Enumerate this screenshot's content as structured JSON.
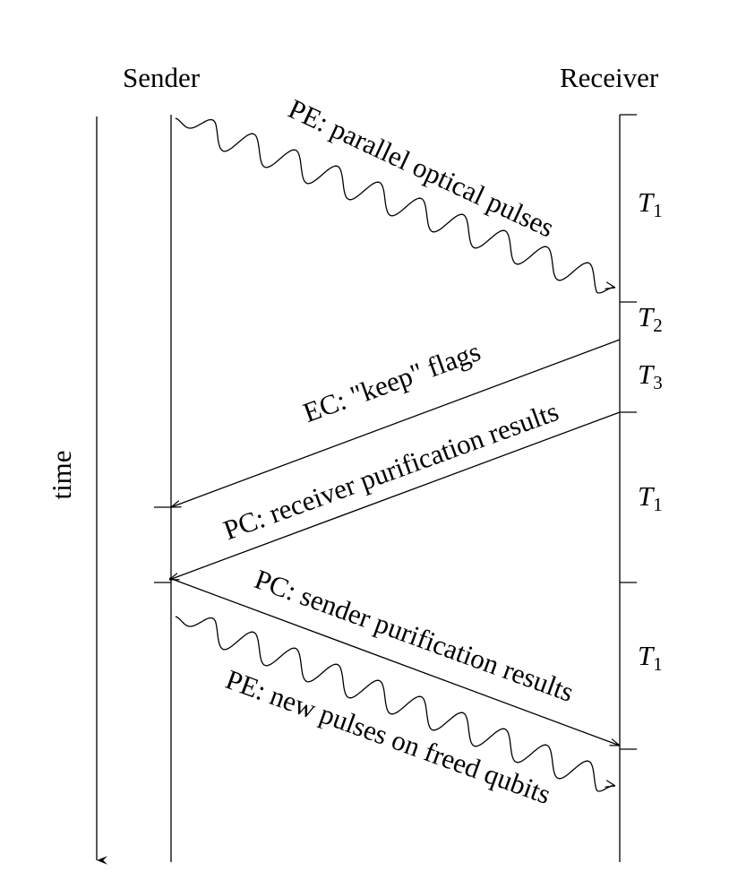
{
  "sender_label": "Sender",
  "receiver_label": "Receiver",
  "time_label": "time",
  "messages": {
    "pe_first": "PE: parallel optical pulses",
    "ec_keep": "EC: \"keep\" flags",
    "pc_receiver": "PC: receiver purification results",
    "pc_sender": "PC: sender purification results",
    "pe_new": "PE: new pulses on freed qubits"
  },
  "intervals": {
    "t1_a": {
      "sym": "T",
      "sub": "1"
    },
    "t2": {
      "sym": "T",
      "sub": "2"
    },
    "t3": {
      "sym": "T",
      "sub": "3"
    },
    "t1_b": {
      "sym": "T",
      "sub": "1"
    },
    "t1_c": {
      "sym": "T",
      "sub": "1"
    }
  }
}
